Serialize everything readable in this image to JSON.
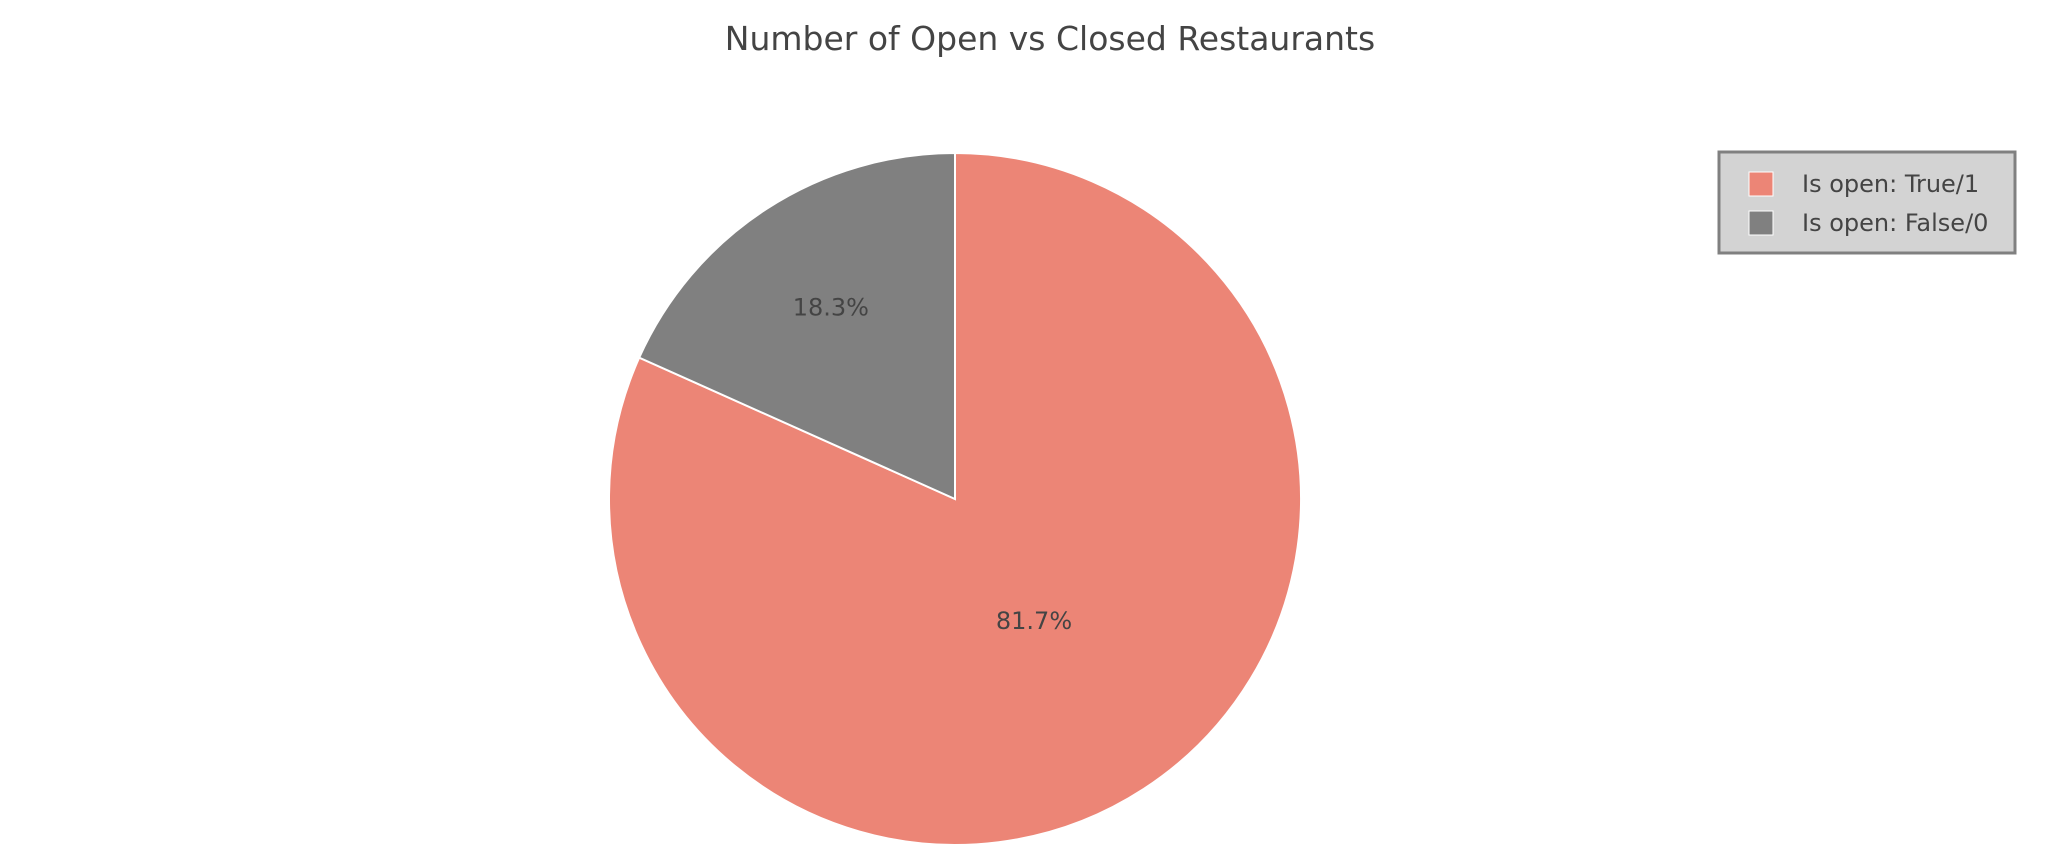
{
  "chart_data": {
    "type": "pie",
    "title": "Number of Open vs Closed Restaurants",
    "slices": [
      {
        "label": "Is open: True/1",
        "value": 81.7,
        "text": "81.7%",
        "color": "#ec8576"
      },
      {
        "label": "Is open: False/0",
        "value": 18.3,
        "text": "18.3%",
        "color": "#808080"
      }
    ],
    "legend": {
      "position": "top-right",
      "background": "#d3d3d3",
      "border": "#808080"
    },
    "direction": "clockwise",
    "start": "top"
  }
}
